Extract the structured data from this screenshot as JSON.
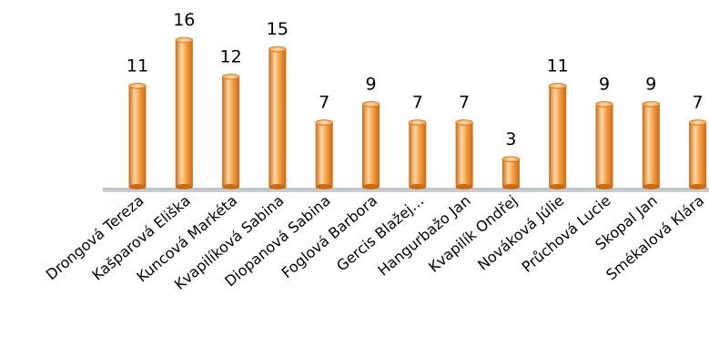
{
  "chart_data": {
    "type": "bar",
    "categories": [
      "Drongová Tereza",
      "Kašparová Eliška",
      "Kuncová Markéta",
      "Kvapilíková Sabina",
      "Diopanová Sabina",
      "Foglová Barbora",
      "Gercis Blažej…",
      "Hangurbažo Jan",
      "Kvapilík Ondřej",
      "Nováková Júlie",
      "Průchová Lucie",
      "Skopal Jan",
      "Smékalová Klára"
    ],
    "values": [
      11,
      16,
      12,
      15,
      7,
      9,
      7,
      7,
      3,
      11,
      9,
      9,
      7
    ],
    "ylim": [
      0,
      16
    ],
    "grid": false,
    "legend": "none",
    "bar_color": "#f39a3c",
    "bar_dark_color": "#c96a14",
    "bar_light_color": "#ffd7a6",
    "floor_color": "#c9cdd3"
  }
}
